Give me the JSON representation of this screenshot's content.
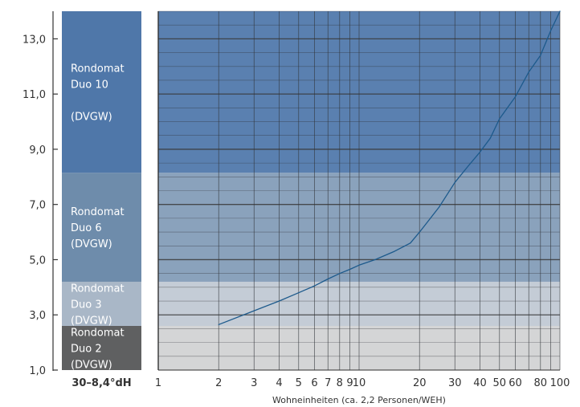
{
  "chart_data": {
    "type": "line",
    "title": "",
    "xlabel": "Wohneinheiten (ca. 2,2 Personen/WEH)",
    "ylabel": "",
    "x_scale": "log",
    "xlim": [
      1,
      100
    ],
    "ylim": [
      1,
      14
    ],
    "x_ticks": [
      1,
      2,
      3,
      4,
      5,
      6,
      7,
      8,
      9,
      10,
      20,
      30,
      40,
      50,
      60,
      80,
      100
    ],
    "x_tick_labels": [
      "1",
      "2",
      "3",
      "4",
      "5",
      "6",
      "7",
      "8",
      "9",
      "10",
      "20",
      "30",
      "40",
      "50",
      "60",
      "80",
      "100"
    ],
    "y_ticks": [
      1,
      3,
      5,
      7,
      9,
      11,
      13
    ],
    "y_tick_labels": [
      "1,0",
      "3,0",
      "5,0",
      "7,0",
      "9,0",
      "11,0",
      "13,0"
    ],
    "x_corner_label": "30–8,4°dH",
    "grid": true,
    "legend": "none",
    "zones": [
      {
        "y_from": 1.0,
        "y_to": 2.6,
        "lines": [
          "Rondomat",
          "Duo 2",
          "(DVGW)"
        ],
        "color_bar": "#5f6061",
        "color_plot": "#d4d5d6"
      },
      {
        "y_from": 2.6,
        "y_to": 4.2,
        "lines": [
          "Rondomat",
          "Duo 3",
          "(DVGW)"
        ],
        "color_bar": "#a9b7c7",
        "color_plot": "#c4ccd6"
      },
      {
        "y_from": 4.2,
        "y_to": 8.15,
        "lines": [
          "Rondomat",
          "Duo 6",
          "(DVGW)"
        ],
        "color_bar": "#6e8cab",
        "color_plot": "#8aa2bc"
      },
      {
        "y_from": 8.15,
        "y_to": 14.0,
        "lines": [
          "Rondomat",
          "Duo 10",
          "",
          "(DVGW)"
        ],
        "color_bar": "#4f77a9",
        "color_plot": "#5a80b0"
      }
    ],
    "series": [
      {
        "color": "#1d5a8c",
        "points": [
          [
            2,
            2.65
          ],
          [
            3,
            3.15
          ],
          [
            4,
            3.5
          ],
          [
            5,
            3.8
          ],
          [
            6,
            4.05
          ],
          [
            7,
            4.3
          ],
          [
            8,
            4.5
          ],
          [
            9,
            4.65
          ],
          [
            10,
            4.8
          ],
          [
            12,
            5.0
          ],
          [
            15,
            5.3
          ],
          [
            18,
            5.6
          ],
          [
            20,
            6.0
          ],
          [
            25,
            6.9
          ],
          [
            30,
            7.8
          ],
          [
            35,
            8.4
          ],
          [
            40,
            8.9
          ],
          [
            45,
            9.4
          ],
          [
            50,
            10.1
          ],
          [
            60,
            10.9
          ],
          [
            70,
            11.8
          ],
          [
            80,
            12.4
          ],
          [
            90,
            13.3
          ],
          [
            100,
            14.0
          ]
        ]
      }
    ]
  }
}
